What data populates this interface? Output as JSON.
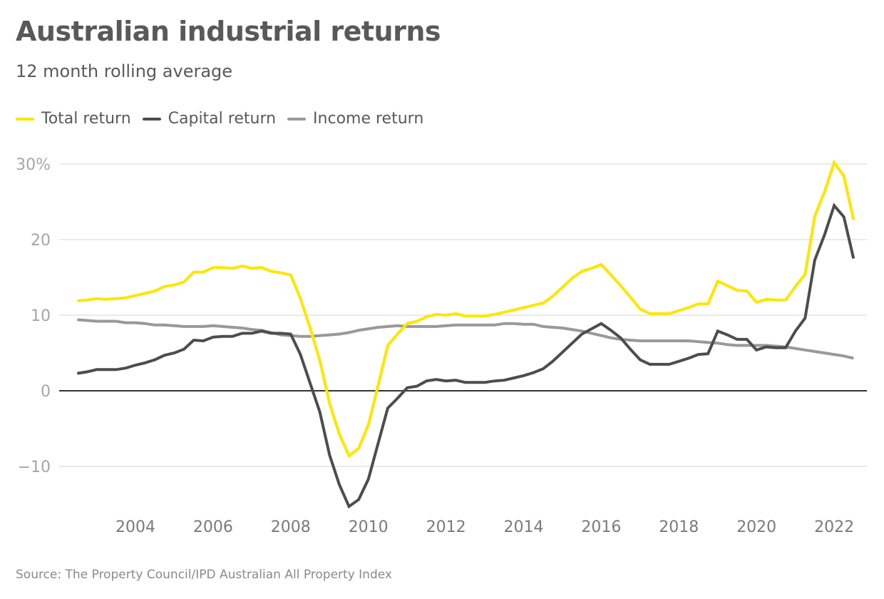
{
  "title": "Australian industrial returns",
  "subtitle": "12 month rolling average",
  "source": "Source: The Property Council/IPD Australian All Property Index",
  "colors": {
    "total": "#ffe600",
    "capital": "#4d4d4d",
    "income": "#999999",
    "grid": "#e3e3e3",
    "zero": "#333333"
  },
  "chart_data": {
    "type": "line",
    "title": "Australian industrial returns",
    "subtitle": "12 month rolling average",
    "xlabel": "",
    "ylabel": "",
    "x_start": 2002.5,
    "x_step": 0.25,
    "xlim": [
      2002.5,
      2022.5
    ],
    "ylim": [
      -16,
      31
    ],
    "grid": true,
    "legend": "top-left",
    "y_ticks": [
      {
        "value": 30,
        "label": "30%"
      },
      {
        "value": 20,
        "label": "20"
      },
      {
        "value": 10,
        "label": "10"
      },
      {
        "value": 0,
        "label": "0"
      },
      {
        "value": -10,
        "label": "−10"
      }
    ],
    "x_ticks": [
      {
        "value": 2004,
        "label": "2004"
      },
      {
        "value": 2006,
        "label": "2006"
      },
      {
        "value": 2008,
        "label": "2008"
      },
      {
        "value": 2010,
        "label": "2010"
      },
      {
        "value": 2012,
        "label": "2012"
      },
      {
        "value": 2014,
        "label": "2014"
      },
      {
        "value": 2016,
        "label": "2016"
      },
      {
        "value": 2018,
        "label": "2018"
      },
      {
        "value": 2020,
        "label": "2020"
      },
      {
        "value": 2022,
        "label": "2022"
      }
    ],
    "series": [
      {
        "name": "Total return",
        "key": "total",
        "values": [
          11.9,
          12.0,
          12.2,
          12.1,
          12.2,
          12.3,
          12.6,
          12.9,
          13.2,
          13.8,
          14.0,
          14.4,
          15.7,
          15.7,
          16.3,
          16.3,
          16.2,
          16.5,
          16.2,
          16.3,
          15.8,
          15.6,
          15.3,
          12.2,
          8.3,
          4.0,
          -1.7,
          -5.7,
          -8.6,
          -7.6,
          -4.5,
          0.7,
          6.0,
          7.5,
          8.9,
          9.2,
          9.8,
          10.1,
          10.0,
          10.2,
          9.9,
          9.9,
          9.9,
          10.1,
          10.4,
          10.7,
          11.0,
          11.3,
          11.6,
          12.5,
          13.7,
          14.9,
          15.8,
          16.2,
          16.7,
          15.3,
          13.9,
          12.4,
          10.8,
          10.2,
          10.2,
          10.2,
          10.6,
          11.0,
          11.5,
          11.5,
          14.5,
          13.9,
          13.3,
          13.2,
          11.7,
          12.1,
          12.0,
          12.0,
          13.8,
          15.4,
          23.1,
          26.3,
          30.2,
          28.4,
          22.6
        ]
      },
      {
        "name": "Capital return",
        "key": "capital",
        "values": [
          2.3,
          2.5,
          2.8,
          2.8,
          2.8,
          3.0,
          3.4,
          3.7,
          4.1,
          4.7,
          5.0,
          5.5,
          6.7,
          6.6,
          7.1,
          7.2,
          7.2,
          7.6,
          7.6,
          7.9,
          7.6,
          7.6,
          7.5,
          4.8,
          1.0,
          -2.8,
          -8.5,
          -12.4,
          -15.3,
          -14.4,
          -11.7,
          -7.0,
          -2.3,
          -1.0,
          0.4,
          0.6,
          1.3,
          1.5,
          1.3,
          1.4,
          1.1,
          1.1,
          1.1,
          1.3,
          1.4,
          1.7,
          2.0,
          2.4,
          2.9,
          3.9,
          5.1,
          6.3,
          7.5,
          8.2,
          8.9,
          8.0,
          7.0,
          5.5,
          4.1,
          3.5,
          3.5,
          3.5,
          3.9,
          4.3,
          4.8,
          4.9,
          7.9,
          7.4,
          6.8,
          6.8,
          5.4,
          5.8,
          5.7,
          5.7,
          7.9,
          9.6,
          17.3,
          20.6,
          24.5,
          23.0,
          17.5
        ]
      },
      {
        "name": "Income return",
        "key": "income",
        "values": [
          9.4,
          9.3,
          9.2,
          9.2,
          9.2,
          9.0,
          9.0,
          8.9,
          8.7,
          8.7,
          8.6,
          8.5,
          8.5,
          8.5,
          8.6,
          8.5,
          8.4,
          8.3,
          8.1,
          8.0,
          7.7,
          7.4,
          7.3,
          7.2,
          7.2,
          7.3,
          7.4,
          7.5,
          7.7,
          8.0,
          8.2,
          8.4,
          8.5,
          8.6,
          8.5,
          8.5,
          8.5,
          8.5,
          8.6,
          8.7,
          8.7,
          8.7,
          8.7,
          8.7,
          8.9,
          8.9,
          8.8,
          8.8,
          8.5,
          8.4,
          8.3,
          8.1,
          7.9,
          7.6,
          7.3,
          7.0,
          6.8,
          6.7,
          6.6,
          6.6,
          6.6,
          6.6,
          6.6,
          6.6,
          6.5,
          6.4,
          6.3,
          6.1,
          6.0,
          6.0,
          6.0,
          6.0,
          5.9,
          5.8,
          5.6,
          5.4,
          5.2,
          5.0,
          4.8,
          4.6,
          4.3
        ]
      }
    ]
  }
}
